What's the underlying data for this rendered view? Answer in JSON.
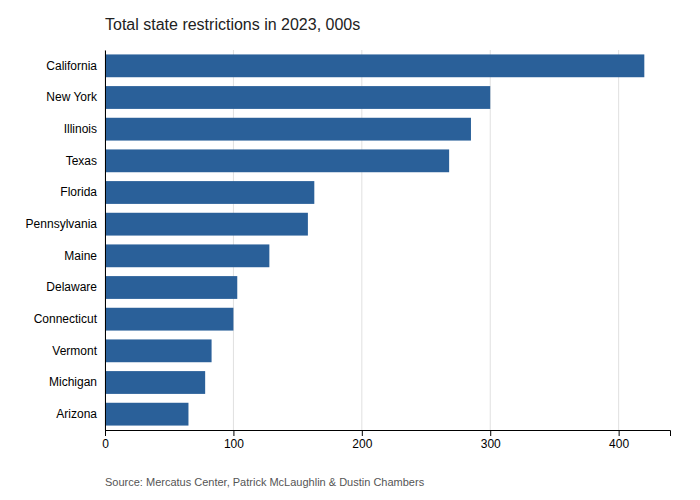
{
  "chart_data": {
    "type": "bar",
    "orientation": "horizontal",
    "title": "Total state restrictions in 2023, 000s",
    "annotations": [
      "Source: Mercatus Center, Patrick McLaughlin & Dustin Chambers"
    ],
    "categories": [
      "California",
      "New York",
      "Illinois",
      "Texas",
      "Florida",
      "Pennsylvania",
      "Maine",
      "Delaware",
      "Connecticut",
      "Vermont",
      "Michigan",
      "Arizona"
    ],
    "values": [
      420,
      300,
      285,
      268,
      163,
      158,
      128,
      103,
      100,
      83,
      78,
      65
    ],
    "color": "#2a6099",
    "xlim": [
      0,
      440
    ],
    "xticks": [
      0,
      100,
      200,
      300,
      400
    ],
    "grid": true
  }
}
